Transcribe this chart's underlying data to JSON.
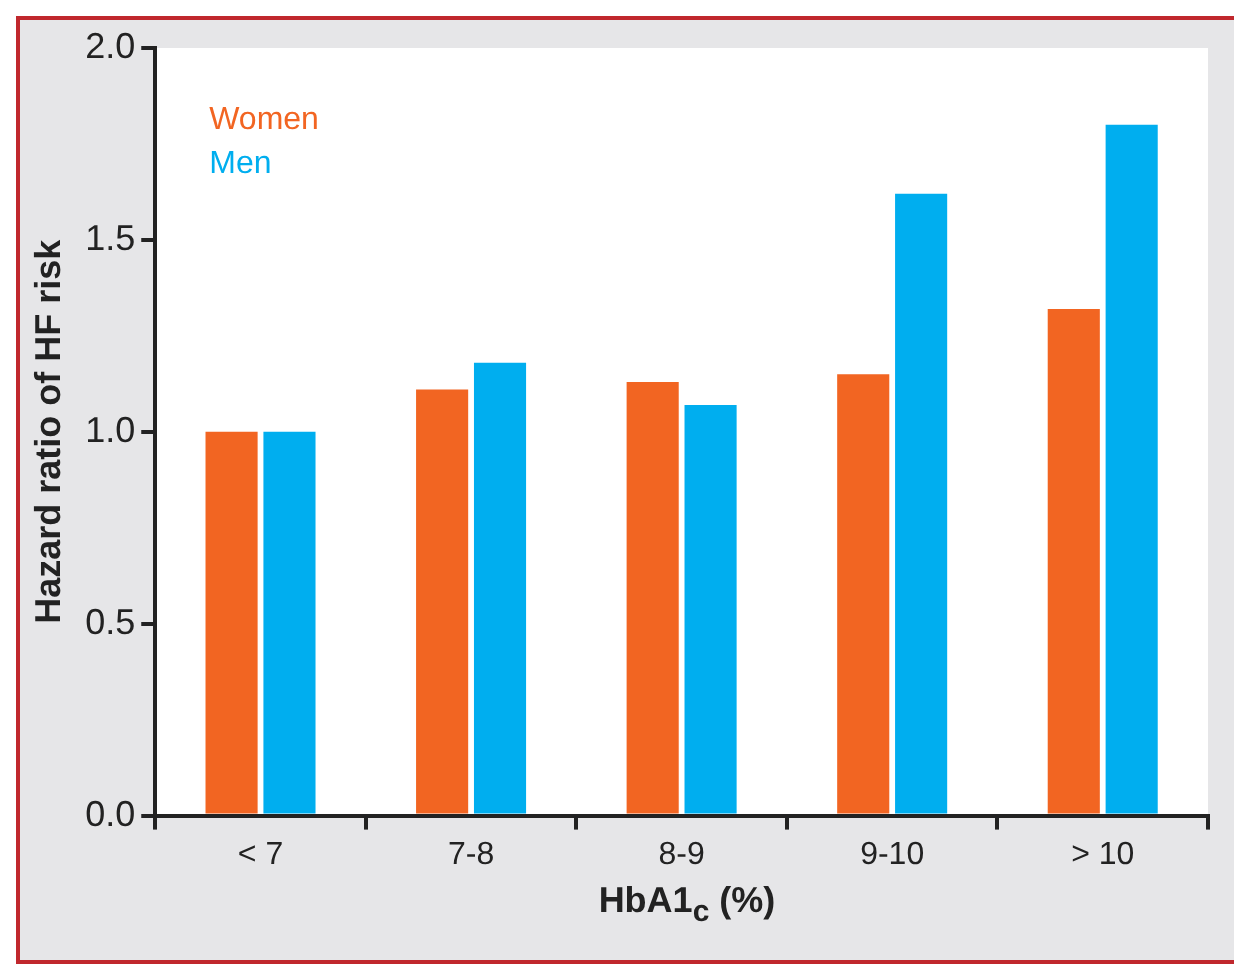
{
  "chart_data": {
    "type": "bar",
    "ylabel": "Hazard ratio of HF risk",
    "xlabel": "HbA1$_{c}$ (%)",
    "categories": [
      "< 7",
      "7-8",
      "8-9",
      "9-10",
      "> 10"
    ],
    "series": [
      {
        "name": "Women",
        "color": "#f26522",
        "values": [
          1.0,
          1.11,
          1.13,
          1.15,
          1.32
        ]
      },
      {
        "name": "Men",
        "color": "#00aeef",
        "values": [
          1.0,
          1.18,
          1.07,
          1.62,
          1.8
        ]
      }
    ],
    "ylim": [
      0,
      2
    ],
    "yticks": [
      {
        "value": 0,
        "label": "0.0"
      },
      {
        "value": 0.5,
        "label": "0.5"
      },
      {
        "value": 1,
        "label": "1.0"
      },
      {
        "value": 1.5,
        "label": "1.5"
      },
      {
        "value": 2,
        "label": "2.0"
      }
    ],
    "grid": false,
    "legend": "top left"
  }
}
